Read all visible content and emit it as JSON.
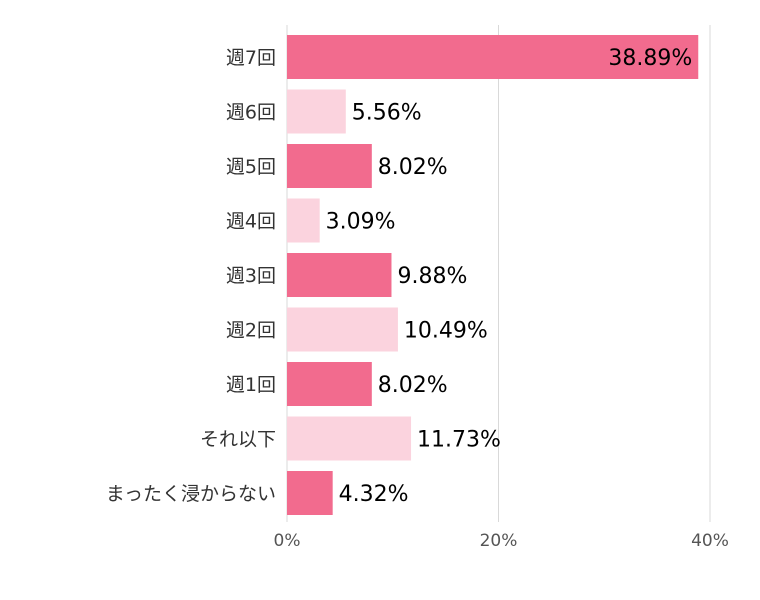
{
  "chart_data": {
    "type": "bar",
    "orientation": "horizontal",
    "categories": [
      "週7回",
      "週6回",
      "週5回",
      "週4回",
      "週3回",
      "週2回",
      "週1回",
      "それ以下",
      "まったく浸からない"
    ],
    "values": [
      38.89,
      5.56,
      8.02,
      3.09,
      9.88,
      10.49,
      8.02,
      11.73,
      4.32
    ],
    "data_labels": [
      "38.89%",
      "5.56%",
      "8.02%",
      "3.09%",
      "9.88%",
      "10.49%",
      "8.02%",
      "11.73%",
      "4.32%"
    ],
    "x_ticks": [
      "0%",
      "20%",
      "40%"
    ],
    "xlim": [
      0,
      40
    ],
    "grid": true,
    "legend": "none",
    "title": "",
    "xlabel": "",
    "ylabel": "",
    "colors": {
      "dark": "#f26b8e",
      "light": "#fbd3de",
      "grid": "#d9d9d9"
    }
  }
}
